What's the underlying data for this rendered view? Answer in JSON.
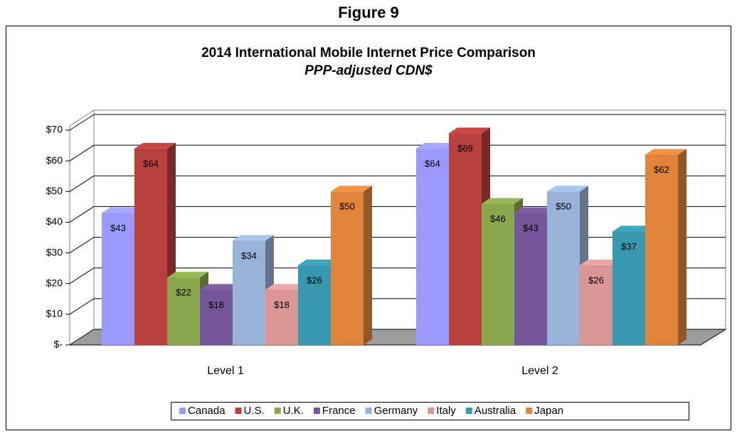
{
  "figure_label": "Figure 9",
  "chart_data": {
    "type": "bar3d",
    "title": "2014 International Mobile Internet Price Comparison",
    "subtitle": "PPP-adjusted CDN$",
    "categories": [
      "Level 1",
      "Level 2"
    ],
    "series": [
      {
        "name": "Canada",
        "color": "#9999ff",
        "values": [
          43,
          64
        ],
        "value_labels": [
          "$43",
          "$64"
        ]
      },
      {
        "name": "U.S.",
        "color": "#b9403d",
        "values": [
          64,
          69
        ],
        "value_labels": [
          "$64",
          "$69"
        ]
      },
      {
        "name": "U.K.",
        "color": "#8aa84b",
        "values": [
          22,
          46
        ],
        "value_labels": [
          "$22",
          "$46"
        ]
      },
      {
        "name": "France",
        "color": "#74579a",
        "values": [
          18,
          43
        ],
        "value_labels": [
          "$18",
          "$43"
        ]
      },
      {
        "name": "Germany",
        "color": "#98b2d8",
        "values": [
          34,
          50
        ],
        "value_labels": [
          "$34",
          "$50"
        ]
      },
      {
        "name": "Italy",
        "color": "#d99694",
        "values": [
          18,
          26
        ],
        "value_labels": [
          "$18",
          "$26"
        ]
      },
      {
        "name": "Australia",
        "color": "#3699b0",
        "values": [
          26,
          37
        ],
        "value_labels": [
          "$26",
          "$37"
        ]
      },
      {
        "name": "Japan",
        "color": "#e0843c",
        "values": [
          50,
          62
        ],
        "value_labels": [
          "$50",
          "$62"
        ]
      }
    ],
    "ylim": [
      0,
      70
    ],
    "yticks": [
      {
        "value": 0,
        "label": "$-"
      },
      {
        "value": 10,
        "label": "$10"
      },
      {
        "value": 20,
        "label": "$20"
      },
      {
        "value": 30,
        "label": "$30"
      },
      {
        "value": 40,
        "label": "$40"
      },
      {
        "value": 50,
        "label": "$50"
      },
      {
        "value": 60,
        "label": "$60"
      },
      {
        "value": 70,
        "label": "$70"
      }
    ],
    "grid": true,
    "legend": "bottom"
  }
}
